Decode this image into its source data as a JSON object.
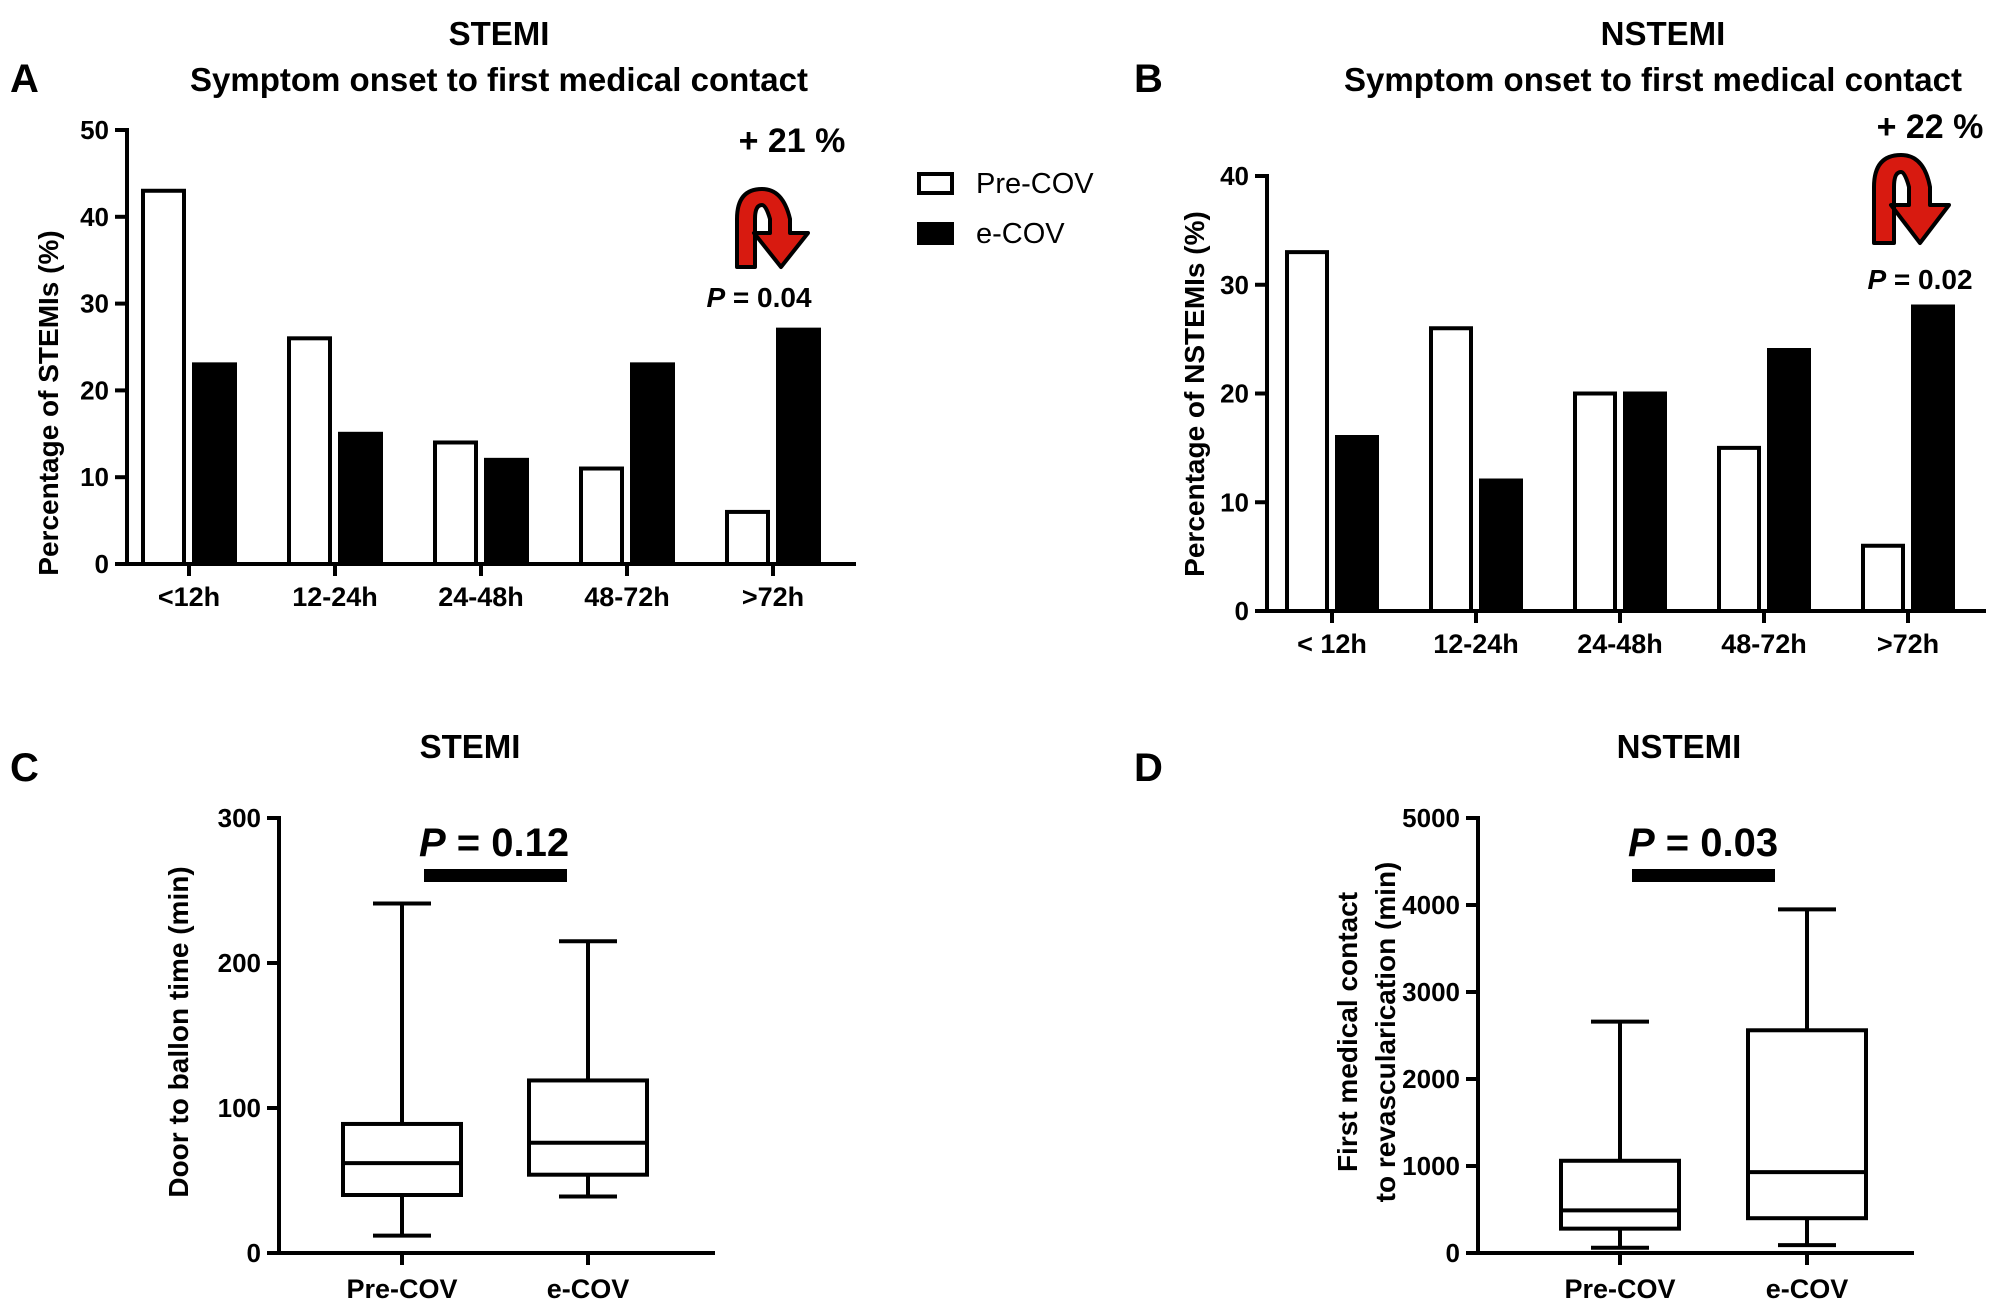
{
  "legend": [
    {
      "label": "Pre-COV",
      "fill": "#ffffff"
    },
    {
      "label": "e-COV",
      "fill": "#000000"
    }
  ],
  "arrow_color": "#d81a10",
  "chart_data": [
    {
      "panel": "A",
      "type": "bar",
      "title": "STEMI",
      "subtitle": "Symptom onset to first medical contact",
      "ylabel": "Percentage of STEMIs (%)",
      "xlabel": "",
      "ylim": [
        0,
        50
      ],
      "yticks": [
        "0",
        "10",
        "20",
        "30",
        "40",
        "50"
      ],
      "categories": [
        "<12h",
        "12-24h",
        "24-48h",
        "48-72h",
        ">72h"
      ],
      "series": [
        {
          "name": "Pre-COV",
          "values": [
            43,
            26,
            14,
            11,
            6
          ]
        },
        {
          "name": "e-COV",
          "values": [
            23,
            15,
            12,
            23,
            27
          ]
        }
      ],
      "annotation": {
        "change": "+ 21 %",
        "p_label": "P",
        "p_value": " = 0.04"
      }
    },
    {
      "panel": "B",
      "type": "bar",
      "title": "NSTEMI",
      "subtitle": "Symptom onset to first medical contact",
      "ylabel": "Percentage of NSTEMIs (%)",
      "xlabel": "",
      "ylim": [
        0,
        40
      ],
      "yticks": [
        "0",
        "10",
        "20",
        "30",
        "40"
      ],
      "categories": [
        "< 12h",
        "12-24h",
        "24-48h",
        "48-72h",
        ">72h"
      ],
      "series": [
        {
          "name": "Pre-COV",
          "values": [
            33,
            26,
            20,
            15,
            6
          ]
        },
        {
          "name": "e-COV",
          "values": [
            16,
            12,
            20,
            24,
            28
          ]
        }
      ],
      "annotation": {
        "change": "+ 22 %",
        "p_label": "P",
        "p_value": " = 0.02"
      }
    },
    {
      "panel": "C",
      "type": "box",
      "title": "STEMI",
      "ylabel": "Door to ballon time (min)",
      "ylim": [
        0,
        300
      ],
      "yticks": [
        "0",
        "100",
        "200",
        "300"
      ],
      "categories": [
        "Pre-COV",
        "e-COV"
      ],
      "boxes": [
        {
          "name": "Pre-COV",
          "min": 12,
          "q1": 40,
          "median": 62,
          "q3": 89,
          "max": 241
        },
        {
          "name": "e-COV",
          "min": 39,
          "q1": 54,
          "median": 76,
          "q3": 119,
          "max": 215
        }
      ],
      "annotation": {
        "p_label": "P",
        "p_value": " = 0.12"
      }
    },
    {
      "panel": "D",
      "type": "box",
      "title": "NSTEMI",
      "ylabel_lines": [
        "First medical contact",
        "to revasculariсation (min)"
      ],
      "ylim": [
        0,
        5000
      ],
      "yticks": [
        "0",
        "1000",
        "2000",
        "3000",
        "4000",
        "5000"
      ],
      "categories": [
        "Pre-COV",
        "e-COV"
      ],
      "boxes": [
        {
          "name": "Pre-COV",
          "min": 60,
          "q1": 280,
          "median": 490,
          "q3": 1060,
          "max": 2660
        },
        {
          "name": "e-COV",
          "min": 90,
          "q1": 400,
          "median": 930,
          "q3": 2560,
          "max": 3950
        }
      ],
      "annotation": {
        "p_label": "P",
        "p_value": " = 0.03"
      }
    }
  ]
}
